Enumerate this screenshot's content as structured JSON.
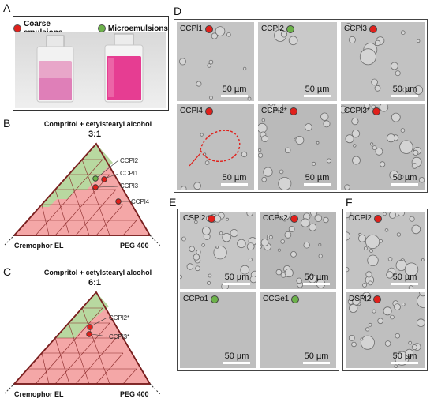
{
  "panels": {
    "A": {
      "label": "A",
      "legend": [
        {
          "label": "Coarse emulsions",
          "color": "#e0201b"
        },
        {
          "label": "Microemulsions",
          "color": "#6cb24a"
        }
      ]
    },
    "B": {
      "label": "B",
      "title": "Compritol + cetylstearyl alcohol",
      "ratio": "3:1",
      "left_corner": "Cremophor EL",
      "right_corner": "PEG 400",
      "points": [
        {
          "label": "CCPl2",
          "color": "#6cb24a"
        },
        {
          "label": "CCPl1",
          "color": "#e0201b"
        },
        {
          "label": "CCPl3",
          "color": "#e0201b"
        },
        {
          "label": "CCPl4",
          "color": "#e0201b"
        }
      ]
    },
    "C": {
      "label": "C",
      "title": "Compritol + cetylstearyl alcohol",
      "ratio": "6:1",
      "left_corner": "Cremophor EL",
      "right_corner": "PEG 400",
      "points": [
        {
          "label": "CCPl2*",
          "color": "#e0201b"
        },
        {
          "label": "CCPl3*",
          "color": "#e0201b"
        }
      ]
    },
    "D": {
      "label": "D",
      "images": [
        {
          "label": "CCPl1",
          "dot": "#e0201b",
          "scale": "50 µm"
        },
        {
          "label": "CCPl2",
          "dot": "#6cb24a",
          "scale": "50 µm"
        },
        {
          "label": "CCPl3",
          "dot": "#e0201b",
          "scale": "50 µm"
        },
        {
          "label": "CCPl4",
          "dot": "#e0201b",
          "scale": "50 µm"
        },
        {
          "label": "CCPl2*",
          "dot": "#e0201b",
          "scale": "50 µm"
        },
        {
          "label": "CCPl3*",
          "dot": "#e0201b",
          "scale": "50 µm"
        }
      ]
    },
    "E": {
      "label": "E",
      "images": [
        {
          "label": "CSPl2",
          "dot": "#e0201b",
          "scale": "50 µm"
        },
        {
          "label": "CCPs2",
          "dot": "#e0201b",
          "scale": "50 µm"
        },
        {
          "label": "CCPo1",
          "dot": "#6cb24a",
          "scale": "50 µm"
        },
        {
          "label": "CCGe1",
          "dot": "#6cb24a",
          "scale": "50 µm"
        }
      ]
    },
    "F": {
      "label": "F",
      "images": [
        {
          "label": "DCPl2",
          "dot": "#e0201b",
          "scale": "50 µm"
        },
        {
          "label": "DSPl2",
          "dot": "#e0201b",
          "scale": "50 µm"
        }
      ]
    }
  },
  "colors": {
    "coarse_region": "#f4a7a7",
    "micro_region": "#b8d8a0",
    "triangle_outline": "#7a1f1f",
    "micrograph_bg": "#bdbdbd"
  }
}
